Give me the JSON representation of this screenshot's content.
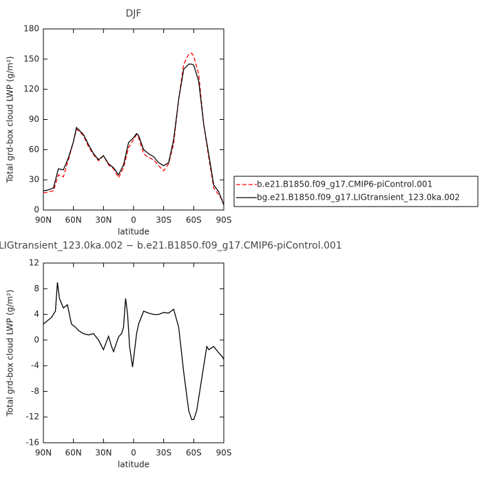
{
  "chart_data": [
    {
      "type": "line",
      "title": "DJF",
      "ylabel": "Total grd-box cloud LWP (g/m²)",
      "xlabel": "latitude",
      "x": [
        90,
        85,
        80,
        75,
        70,
        65,
        60,
        57,
        55,
        50,
        45,
        40,
        35,
        30,
        25,
        20,
        15,
        10,
        5,
        0,
        -3,
        -5,
        -10,
        -15,
        -20,
        -25,
        -30,
        -35,
        -40,
        -45,
        -50,
        -55,
        -58,
        -60,
        -65,
        -70,
        -75,
        -80,
        -85,
        -90
      ],
      "xlim": [
        90,
        -90
      ],
      "xticks": [
        {
          "value": 90,
          "label": "90N"
        },
        {
          "value": 60,
          "label": "60N"
        },
        {
          "value": 30,
          "label": "30N"
        },
        0,
        {
          "value": -30,
          "label": "30S"
        },
        {
          "value": -60,
          "label": "60S"
        },
        {
          "value": -90,
          "label": "90S"
        }
      ],
      "ylim": [
        0,
        180
      ],
      "yticks": [
        0,
        30,
        60,
        90,
        120,
        150,
        180
      ],
      "legend": "right",
      "series": [
        {
          "name": "b.e21.B1850.f09_g17.CMIP6-piControl.001",
          "color": "#ff0000",
          "dash": "dashed",
          "values": [
            17,
            18,
            19,
            35,
            33,
            50,
            68,
            80,
            79,
            74,
            63,
            55,
            49,
            54,
            45,
            41,
            32,
            42,
            62,
            70,
            75,
            72,
            56,
            52,
            50,
            44,
            39,
            46,
            66,
            110,
            145,
            155,
            156,
            153,
            135,
            85,
            52,
            22,
            15,
            8
          ]
        },
        {
          "name": "bg.e21.B1850.f09_g17.LIGtransient_123.0ka.002",
          "color": "#000000",
          "dash": "solid",
          "values": [
            19,
            20,
            22,
            41,
            40,
            52,
            68,
            82,
            80,
            75,
            65,
            56,
            50,
            54,
            46,
            42,
            35,
            45,
            67,
            72,
            76,
            74,
            60,
            56,
            53,
            47,
            44,
            47,
            70,
            110,
            140,
            145,
            145,
            144,
            128,
            85,
            55,
            25,
            18,
            5
          ]
        }
      ]
    },
    {
      "type": "line",
      "title": "LIGtransient_123.0ka.002 − b.e21.B1850.f09_g17.CMIP6-piControl.001",
      "ylabel": "Total grd-box cloud LWP (g/m²)",
      "xlabel": "latitude",
      "x": [
        90,
        86,
        82,
        78,
        76,
        74,
        70,
        66,
        62,
        58,
        55,
        50,
        45,
        40,
        35,
        30,
        25,
        22,
        20,
        15,
        12,
        10,
        8,
        6,
        4,
        1,
        -3,
        -5,
        -10,
        -15,
        -20,
        -25,
        -30,
        -35,
        -40,
        -45,
        -50,
        -55,
        -58,
        -60,
        -63,
        -65,
        -70,
        -73,
        -75,
        -80,
        -85,
        -88,
        -90
      ],
      "xlim": [
        90,
        -90
      ],
      "xticks": [
        {
          "value": 90,
          "label": "90N"
        },
        {
          "value": 60,
          "label": "60N"
        },
        {
          "value": 30,
          "label": "30N"
        },
        0,
        {
          "value": -30,
          "label": "30S"
        },
        {
          "value": -60,
          "label": "60S"
        },
        {
          "value": -90,
          "label": "90S"
        }
      ],
      "ylim": [
        -16,
        12
      ],
      "yticks": [
        -16,
        -12,
        -8,
        -4,
        0,
        4,
        8,
        12
      ],
      "color": "#000000",
      "values": [
        2.5,
        3,
        3.5,
        4.5,
        9,
        6.5,
        5,
        5.5,
        2.5,
        2,
        1.5,
        1,
        0.8,
        1,
        0,
        -1.5,
        0.6,
        -1,
        -1.8,
        0.5,
        1,
        2,
        6.5,
        4,
        -1,
        -4.2,
        1,
        2.5,
        4.5,
        4.2,
        4,
        4,
        4.3,
        4.2,
        4.8,
        2,
        -5,
        -11,
        -12.4,
        -12.4,
        -11,
        -9,
        -4,
        -1,
        -1.5,
        -1,
        -2,
        -2.5,
        -3
      ]
    }
  ]
}
